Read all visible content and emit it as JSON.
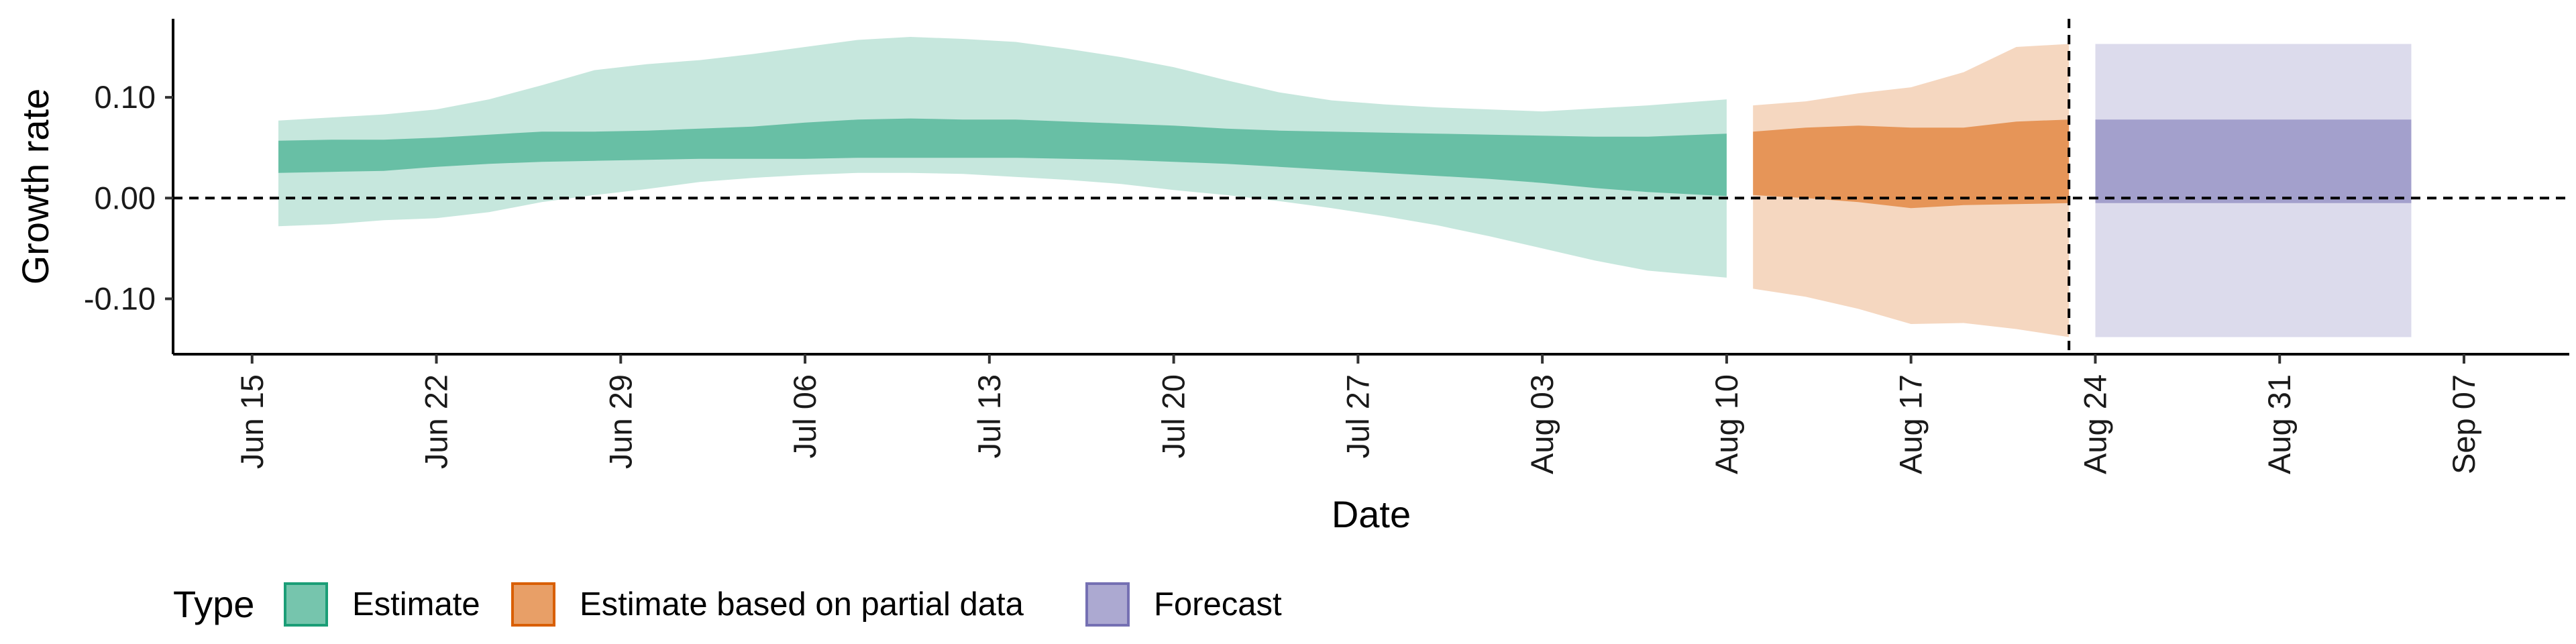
{
  "chart_data": {
    "type": "area",
    "xlabel": "Date",
    "ylabel": "Growth rate",
    "ylim": [
      -0.155,
      0.178
    ],
    "xlim": [
      "2020-06-12",
      "2020-09-11"
    ],
    "yticks": [
      {
        "value": -0.1,
        "label": "-0.10"
      },
      {
        "value": 0.0,
        "label": "0.00"
      },
      {
        "value": 0.1,
        "label": "0.10"
      }
    ],
    "xticks": [
      {
        "date": "2020-06-15",
        "label": "Jun 15"
      },
      {
        "date": "2020-06-22",
        "label": "Jun 22"
      },
      {
        "date": "2020-06-29",
        "label": "Jun 29"
      },
      {
        "date": "2020-07-06",
        "label": "Jul 06"
      },
      {
        "date": "2020-07-13",
        "label": "Jul 13"
      },
      {
        "date": "2020-07-20",
        "label": "Jul 20"
      },
      {
        "date": "2020-07-27",
        "label": "Jul 27"
      },
      {
        "date": "2020-08-03",
        "label": "Aug 03"
      },
      {
        "date": "2020-08-10",
        "label": "Aug 10"
      },
      {
        "date": "2020-08-17",
        "label": "Aug 17"
      },
      {
        "date": "2020-08-24",
        "label": "Aug 24"
      },
      {
        "date": "2020-08-31",
        "label": "Aug 31"
      },
      {
        "date": "2020-09-07",
        "label": "Sep 07"
      }
    ],
    "hlines": [
      {
        "y": 0,
        "style": "dashed"
      }
    ],
    "vlines": [
      {
        "x": "2020-08-23",
        "style": "dashed"
      }
    ],
    "grid": false,
    "legend": {
      "title": "Type",
      "position": "bottom",
      "entries": [
        {
          "label": "Estimate",
          "color": "#1b9e77"
        },
        {
          "label": "Estimate based on partial data",
          "color": "#d95f02"
        },
        {
          "label": "Forecast",
          "color": "#7570b3"
        }
      ]
    },
    "series": [
      {
        "name": "Estimate",
        "color": "#1b9e77",
        "points": [
          {
            "date": "2020-06-16",
            "lo90": -0.028,
            "lo50": 0.025,
            "hi50": 0.057,
            "hi90": 0.077
          },
          {
            "date": "2020-06-18",
            "lo90": -0.026,
            "lo50": 0.026,
            "hi50": 0.058,
            "hi90": 0.08
          },
          {
            "date": "2020-06-20",
            "lo90": -0.022,
            "lo50": 0.027,
            "hi50": 0.058,
            "hi90": 0.083
          },
          {
            "date": "2020-06-22",
            "lo90": -0.02,
            "lo50": 0.031,
            "hi50": 0.06,
            "hi90": 0.088
          },
          {
            "date": "2020-06-24",
            "lo90": -0.014,
            "lo50": 0.034,
            "hi50": 0.063,
            "hi90": 0.098
          },
          {
            "date": "2020-06-26",
            "lo90": -0.004,
            "lo50": 0.036,
            "hi50": 0.066,
            "hi90": 0.112
          },
          {
            "date": "2020-06-28",
            "lo90": 0.003,
            "lo50": 0.037,
            "hi50": 0.066,
            "hi90": 0.127
          },
          {
            "date": "2020-06-30",
            "lo90": 0.009,
            "lo50": 0.038,
            "hi50": 0.067,
            "hi90": 0.133
          },
          {
            "date": "2020-07-02",
            "lo90": 0.016,
            "lo50": 0.039,
            "hi50": 0.069,
            "hi90": 0.137
          },
          {
            "date": "2020-07-04",
            "lo90": 0.02,
            "lo50": 0.039,
            "hi50": 0.071,
            "hi90": 0.143
          },
          {
            "date": "2020-07-06",
            "lo90": 0.023,
            "lo50": 0.039,
            "hi50": 0.075,
            "hi90": 0.15
          },
          {
            "date": "2020-07-08",
            "lo90": 0.025,
            "lo50": 0.04,
            "hi50": 0.078,
            "hi90": 0.157
          },
          {
            "date": "2020-07-10",
            "lo90": 0.025,
            "lo50": 0.04,
            "hi50": 0.079,
            "hi90": 0.16
          },
          {
            "date": "2020-07-12",
            "lo90": 0.024,
            "lo50": 0.04,
            "hi50": 0.078,
            "hi90": 0.158
          },
          {
            "date": "2020-07-14",
            "lo90": 0.021,
            "lo50": 0.04,
            "hi50": 0.078,
            "hi90": 0.155
          },
          {
            "date": "2020-07-16",
            "lo90": 0.018,
            "lo50": 0.039,
            "hi50": 0.076,
            "hi90": 0.148
          },
          {
            "date": "2020-07-18",
            "lo90": 0.014,
            "lo50": 0.038,
            "hi50": 0.074,
            "hi90": 0.14
          },
          {
            "date": "2020-07-20",
            "lo90": 0.008,
            "lo50": 0.036,
            "hi50": 0.072,
            "hi90": 0.13
          },
          {
            "date": "2020-07-22",
            "lo90": 0.003,
            "lo50": 0.034,
            "hi50": 0.069,
            "hi90": 0.117
          },
          {
            "date": "2020-07-24",
            "lo90": -0.003,
            "lo50": 0.031,
            "hi50": 0.067,
            "hi90": 0.105
          },
          {
            "date": "2020-07-26",
            "lo90": -0.01,
            "lo50": 0.028,
            "hi50": 0.066,
            "hi90": 0.097
          },
          {
            "date": "2020-07-28",
            "lo90": -0.018,
            "lo50": 0.025,
            "hi50": 0.065,
            "hi90": 0.093
          },
          {
            "date": "2020-07-30",
            "lo90": -0.027,
            "lo50": 0.022,
            "hi50": 0.064,
            "hi90": 0.09
          },
          {
            "date": "2020-08-01",
            "lo90": -0.038,
            "lo50": 0.019,
            "hi50": 0.063,
            "hi90": 0.088
          },
          {
            "date": "2020-08-03",
            "lo90": -0.05,
            "lo50": 0.015,
            "hi50": 0.062,
            "hi90": 0.086
          },
          {
            "date": "2020-08-05",
            "lo90": -0.062,
            "lo50": 0.01,
            "hi50": 0.061,
            "hi90": 0.089
          },
          {
            "date": "2020-08-07",
            "lo90": -0.072,
            "lo50": 0.006,
            "hi50": 0.061,
            "hi90": 0.092
          },
          {
            "date": "2020-08-10",
            "lo90": -0.079,
            "lo50": 0.002,
            "hi50": 0.064,
            "hi90": 0.098
          }
        ]
      },
      {
        "name": "Estimate based on partial data",
        "color": "#d95f02",
        "points": [
          {
            "date": "2020-08-11",
            "lo90": -0.09,
            "lo50": 0.003,
            "hi50": 0.066,
            "hi90": 0.092
          },
          {
            "date": "2020-08-13",
            "lo90": -0.098,
            "lo50": 0.0,
            "hi50": 0.07,
            "hi90": 0.096
          },
          {
            "date": "2020-08-15",
            "lo90": -0.11,
            "lo50": -0.004,
            "hi50": 0.072,
            "hi90": 0.104
          },
          {
            "date": "2020-08-17",
            "lo90": -0.125,
            "lo50": -0.01,
            "hi50": 0.07,
            "hi90": 0.11
          },
          {
            "date": "2020-08-19",
            "lo90": -0.124,
            "lo50": -0.007,
            "hi50": 0.07,
            "hi90": 0.125
          },
          {
            "date": "2020-08-21",
            "lo90": -0.13,
            "lo50": -0.006,
            "hi50": 0.076,
            "hi90": 0.15
          },
          {
            "date": "2020-08-23",
            "lo90": -0.138,
            "lo50": -0.005,
            "hi50": 0.078,
            "hi90": 0.153
          }
        ]
      },
      {
        "name": "Forecast",
        "color": "#7570b3",
        "points": [
          {
            "date": "2020-08-24",
            "lo90": -0.138,
            "lo50": -0.005,
            "hi50": 0.078,
            "hi90": 0.153
          },
          {
            "date": "2020-09-05",
            "lo90": -0.138,
            "lo50": -0.005,
            "hi50": 0.078,
            "hi90": 0.153
          }
        ]
      }
    ]
  }
}
